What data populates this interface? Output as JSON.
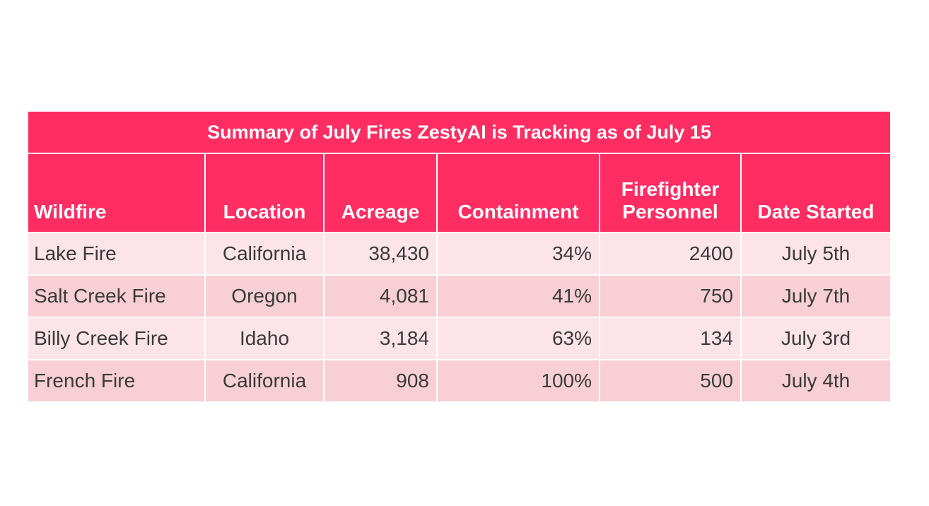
{
  "title": "Summary  of July  Fires ZestyAI  is Tracking as of July  15",
  "columns": [
    "Wildfire",
    "Location",
    "Acreage",
    "Containment",
    "Firefighter Personnel",
    "Date Started"
  ],
  "rows": [
    {
      "wildfire": "Lake Fire",
      "location": "California",
      "acreage": "38,430",
      "containment": "34%",
      "personnel": "2400",
      "date": "July 5th"
    },
    {
      "wildfire": "Salt Creek Fire",
      "location": "Oregon",
      "acreage": "4,081",
      "containment": "41%",
      "personnel": "750",
      "date": "July 7th"
    },
    {
      "wildfire": "Billy Creek Fire",
      "location": "Idaho",
      "acreage": "3,184",
      "containment": "63%",
      "personnel": "134",
      "date": "July 3rd"
    },
    {
      "wildfire": "French Fire",
      "location": "California",
      "acreage": "908",
      "containment": "100%",
      "personnel": "500",
      "date": "July 4th"
    }
  ],
  "colors": {
    "header": "#ff2d62",
    "row_light": "#fde4e8",
    "row_dark": "#f7cfd4"
  }
}
